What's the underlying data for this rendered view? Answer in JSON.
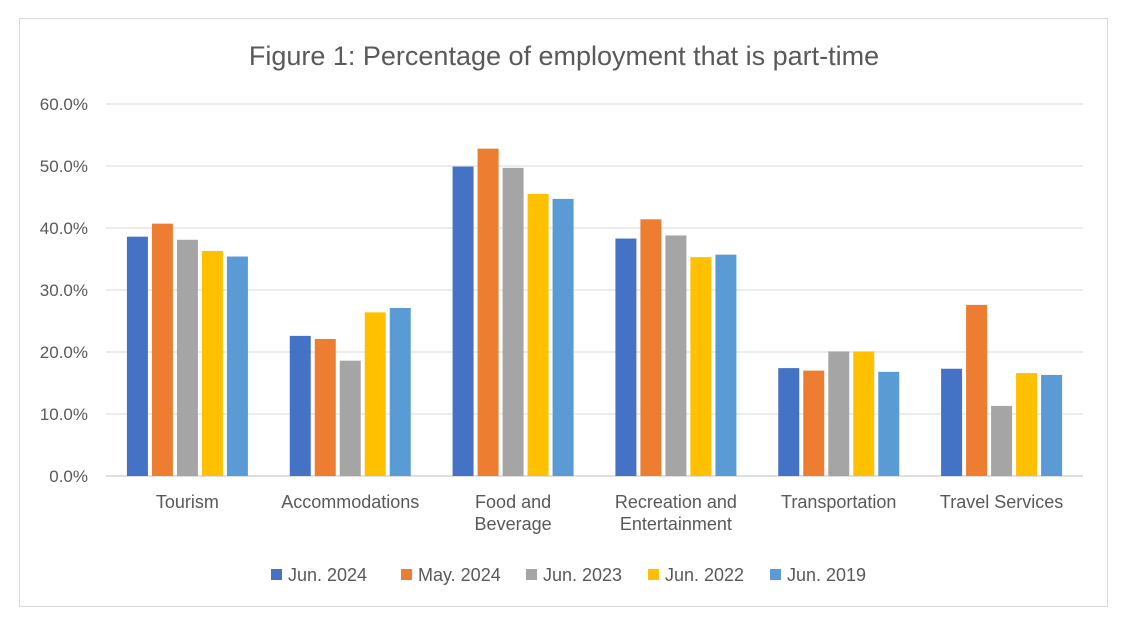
{
  "chart_data": {
    "type": "bar",
    "title": "Figure 1: Percentage of employment that is part-time",
    "categories": [
      [
        "Tourism"
      ],
      [
        "Accommodations"
      ],
      [
        "Food and",
        "Beverage"
      ],
      [
        "Recreation and",
        "Entertainment"
      ],
      [
        "Transportation"
      ],
      [
        "Travel Services"
      ]
    ],
    "series": [
      {
        "name": "Jun. 2024",
        "color": "#4472c4",
        "values": [
          38.6,
          22.6,
          49.9,
          38.3,
          17.4,
          17.3
        ]
      },
      {
        "name": "May. 2024",
        "color": "#ed7d31",
        "values": [
          40.7,
          22.1,
          52.8,
          41.4,
          17.0,
          27.6
        ]
      },
      {
        "name": "Jun. 2023",
        "color": "#a5a5a5",
        "values": [
          38.1,
          18.6,
          49.7,
          38.8,
          20.1,
          11.3
        ]
      },
      {
        "name": "Jun. 2022",
        "color": "#ffc000",
        "values": [
          36.3,
          26.4,
          45.5,
          35.3,
          20.1,
          16.6
        ]
      },
      {
        "name": "Jun. 2019",
        "color": "#5b9bd5",
        "values": [
          35.4,
          27.1,
          44.7,
          35.7,
          16.8,
          16.3
        ]
      }
    ],
    "yticks": [
      "0.0%",
      "10.0%",
      "20.0%",
      "30.0%",
      "40.0%",
      "50.0%",
      "60.0%"
    ],
    "ylim": [
      0,
      60
    ],
    "xlabel": "",
    "ylabel": "",
    "grid": true,
    "legend_position": "bottom"
  }
}
